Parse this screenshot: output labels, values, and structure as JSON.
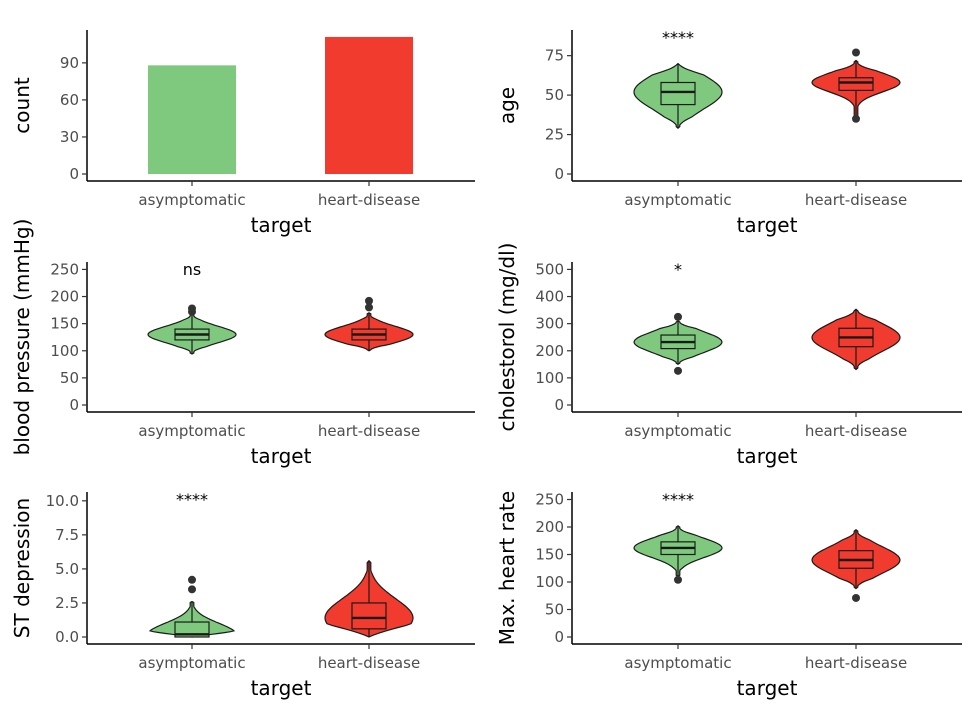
{
  "colors": {
    "asymptomatic": "#7fc97f",
    "heart_disease": "#f03b2e",
    "outline": "#1a1a1a",
    "axis": "#000000"
  },
  "chart_data": [
    {
      "type": "bar",
      "xlabel": "target",
      "ylabel": "count",
      "categories": [
        "asymptomatic",
        "heart-disease"
      ],
      "values": [
        88,
        111
      ],
      "ylim": [
        0,
        115
      ],
      "yticks": [
        0,
        30,
        60,
        90
      ],
      "grid": false
    },
    {
      "type": "violin",
      "xlabel": "target",
      "ylabel": "age",
      "categories": [
        "asymptomatic",
        "heart-disease"
      ],
      "ylim": [
        0,
        90
      ],
      "yticks": [
        0,
        25,
        50,
        75
      ],
      "significance": "****",
      "groups": [
        {
          "name": "asymptomatic",
          "min": 29,
          "q1": 44,
          "median": 52,
          "q3": 58,
          "max": 70,
          "outliers": []
        },
        {
          "name": "heart-disease",
          "min": 35,
          "q1": 53,
          "median": 58,
          "q3": 61,
          "max": 72,
          "outliers": [
            77,
            35
          ]
        }
      ],
      "grid": false
    },
    {
      "type": "violin",
      "xlabel": "target",
      "ylabel": "blood pressure (mmHg)",
      "categories": [
        "asymptomatic",
        "heart-disease"
      ],
      "ylim": [
        0,
        260
      ],
      "yticks": [
        0,
        50,
        100,
        150,
        200,
        250
      ],
      "significance": "ns",
      "groups": [
        {
          "name": "asymptomatic",
          "min": 94,
          "q1": 120,
          "median": 130,
          "q3": 140,
          "max": 170,
          "outliers": [
            172,
            178
          ]
        },
        {
          "name": "heart-disease",
          "min": 100,
          "q1": 120,
          "median": 130,
          "q3": 140,
          "max": 170,
          "outliers": [
            180,
            192
          ]
        }
      ],
      "grid": false
    },
    {
      "type": "violin",
      "xlabel": "target",
      "ylabel": "cholestorol (mg/dl)",
      "categories": [
        "asymptomatic",
        "heart-disease"
      ],
      "ylim": [
        0,
        520
      ],
      "yticks": [
        0,
        100,
        200,
        300,
        400,
        500
      ],
      "significance": "*",
      "groups": [
        {
          "name": "asymptomatic",
          "min": 150,
          "q1": 208,
          "median": 232,
          "q3": 258,
          "max": 310,
          "outliers": [
            126,
            325
          ]
        },
        {
          "name": "heart-disease",
          "min": 131,
          "q1": 215,
          "median": 249,
          "q3": 283,
          "max": 353,
          "outliers": []
        }
      ],
      "grid": false
    },
    {
      "type": "violin",
      "xlabel": "target",
      "ylabel": "ST depression",
      "categories": [
        "asymptomatic",
        "heart-disease"
      ],
      "ylim": [
        0,
        10.5
      ],
      "yticks": [
        0.0,
        2.5,
        5.0,
        7.5,
        10.0
      ],
      "yticklabels": [
        "0.0",
        "2.5",
        "5.0",
        "7.5",
        "10.0"
      ],
      "significance": "****",
      "groups": [
        {
          "name": "asymptomatic",
          "min": 0,
          "q1": 0,
          "median": 0.2,
          "q3": 1.1,
          "max": 2.6,
          "outliers": [
            3.5,
            4.2
          ]
        },
        {
          "name": "heart-disease",
          "min": 0,
          "q1": 0.6,
          "median": 1.4,
          "q3": 2.5,
          "max": 5.6,
          "outliers": []
        }
      ],
      "grid": false
    },
    {
      "type": "violin",
      "xlabel": "target",
      "ylabel": "Max. heart rate",
      "categories": [
        "asymptomatic",
        "heart-disease"
      ],
      "ylim": [
        0,
        260
      ],
      "yticks": [
        0,
        50,
        100,
        150,
        200,
        250
      ],
      "significance": "****",
      "groups": [
        {
          "name": "asymptomatic",
          "min": 110,
          "q1": 150,
          "median": 162,
          "q3": 173,
          "max": 202,
          "outliers": [
            104
          ]
        },
        {
          "name": "heart-disease",
          "min": 88,
          "q1": 125,
          "median": 140,
          "q3": 157,
          "max": 195,
          "outliers": [
            71
          ]
        }
      ],
      "grid": false
    }
  ]
}
